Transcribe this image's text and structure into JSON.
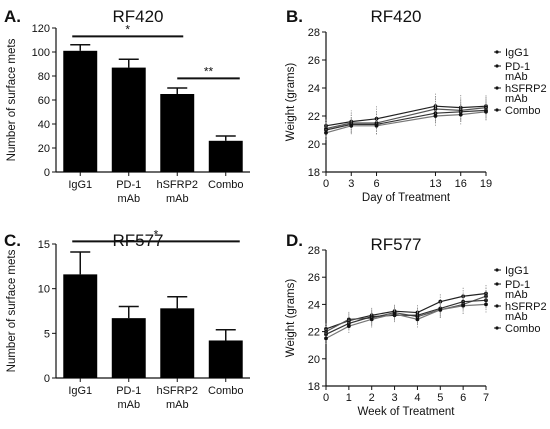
{
  "chart_data": [
    {
      "panel": "A.",
      "type": "bar",
      "title": "RF420",
      "ylabel": "Number of surface mets",
      "xlabel": "",
      "ylim": [
        0,
        120
      ],
      "yticks": [
        0,
        20,
        40,
        60,
        80,
        100,
        120
      ],
      "categories": [
        [
          "IgG1"
        ],
        [
          "PD-1",
          "mAb"
        ],
        [
          "hSFRP2",
          "mAb"
        ],
        [
          "Combo"
        ]
      ],
      "values": [
        101,
        87,
        65,
        26
      ],
      "errors": [
        5,
        7,
        5,
        4
      ],
      "bar_color": "#000000",
      "significance": [
        {
          "from": 0,
          "to": 2,
          "label": "*",
          "y": 113
        },
        {
          "from": 2,
          "to": 3,
          "label": "**",
          "y": 78
        }
      ]
    },
    {
      "panel": "B.",
      "type": "line",
      "title": "RF420",
      "ylabel": "Weight (grams)",
      "xlabel": "Day of Treatment",
      "ylim": [
        18,
        28
      ],
      "yticks": [
        18,
        20,
        22,
        24,
        26,
        28
      ],
      "xlim": [
        0,
        19
      ],
      "xticks": [
        0,
        3,
        6,
        13,
        16,
        19
      ],
      "x": [
        0,
        3,
        6,
        13,
        16,
        19
      ],
      "series": [
        {
          "name": "IgG1",
          "values": [
            21.3,
            21.6,
            21.8,
            22.7,
            22.6,
            22.7
          ],
          "errors": [
            0.5,
            0.8,
            0.9,
            0.9,
            0.9,
            0.8
          ]
        },
        {
          "name": "PD-1 mAb",
          "values": [
            21.1,
            21.5,
            21.5,
            22.5,
            22.4,
            22.6
          ],
          "errors": [
            0.5,
            0.7,
            0.8,
            0.9,
            0.8,
            0.8
          ]
        },
        {
          "name": "hSFRP2 mAb",
          "values": [
            21.0,
            21.4,
            21.4,
            22.2,
            22.3,
            22.4
          ],
          "errors": [
            0.5,
            0.6,
            0.7,
            0.7,
            0.7,
            0.7
          ]
        },
        {
          "name": "Combo",
          "values": [
            20.8,
            21.3,
            21.3,
            22.0,
            22.1,
            22.3
          ],
          "errors": [
            0.5,
            0.6,
            0.6,
            0.7,
            0.7,
            0.6
          ]
        }
      ],
      "legend_lines": [
        [
          "IgG1"
        ],
        [
          "PD-1",
          "mAb"
        ],
        [
          "hSFRP2",
          "mAb"
        ],
        [
          "Combo"
        ]
      ],
      "legend_placement": "right"
    },
    {
      "panel": "C.",
      "type": "bar",
      "title": "RF577",
      "ylabel": "Number of surface mets",
      "xlabel": "",
      "ylim": [
        0,
        15
      ],
      "yticks": [
        0,
        5,
        10,
        15
      ],
      "categories": [
        [
          "IgG1"
        ],
        [
          "PD-1",
          "mAb"
        ],
        [
          "hSFRP2",
          "mAb"
        ],
        [
          "Combo"
        ]
      ],
      "values": [
        11.6,
        6.7,
        7.8,
        4.2
      ],
      "errors": [
        2.5,
        1.3,
        1.3,
        1.2
      ],
      "bar_color": "#000000",
      "significance": [
        {
          "from": 0,
          "to": 3,
          "label": "*",
          "y": 15.3
        }
      ]
    },
    {
      "panel": "D.",
      "type": "line",
      "title": "RF577",
      "ylabel": "Weight (grams)",
      "xlabel": "Week of Treatment",
      "ylim": [
        18,
        28
      ],
      "yticks": [
        18,
        20,
        22,
        24,
        26,
        28
      ],
      "xlim": [
        0,
        7
      ],
      "xticks": [
        0,
        1,
        2,
        3,
        4,
        5,
        6,
        7
      ],
      "x": [
        0,
        1,
        2,
        3,
        4,
        5,
        6,
        7
      ],
      "series": [
        {
          "name": "IgG1",
          "values": [
            22.2,
            22.8,
            23.2,
            23.5,
            23.4,
            24.2,
            24.6,
            24.8
          ],
          "errors": [
            0.4,
            0.6,
            0.6,
            0.5,
            0.6,
            0.6,
            0.7,
            0.7
          ]
        },
        {
          "name": "PD-1 mAb",
          "values": [
            22.0,
            22.9,
            23.0,
            23.4,
            23.1,
            23.6,
            24.0,
            24.6
          ],
          "errors": [
            0.4,
            0.6,
            0.6,
            0.5,
            0.6,
            0.6,
            0.7,
            0.7
          ]
        },
        {
          "name": "hSFRP2 mAb",
          "values": [
            21.8,
            22.6,
            23.1,
            23.2,
            23.2,
            23.7,
            24.2,
            24.3
          ],
          "errors": [
            0.4,
            0.5,
            0.6,
            0.5,
            0.6,
            0.6,
            0.6,
            0.6
          ]
        },
        {
          "name": "Combo",
          "values": [
            21.5,
            22.4,
            22.9,
            23.3,
            22.9,
            23.6,
            23.9,
            24.0
          ],
          "errors": [
            0.4,
            0.5,
            0.6,
            0.5,
            0.6,
            0.6,
            0.6,
            0.6
          ]
        }
      ],
      "legend_lines": [
        [
          "IgG1"
        ],
        [
          "PD-1",
          "mAb"
        ],
        [
          "hSFRP2",
          "mAb"
        ],
        [
          "Combo"
        ]
      ],
      "legend_placement": "right"
    }
  ]
}
